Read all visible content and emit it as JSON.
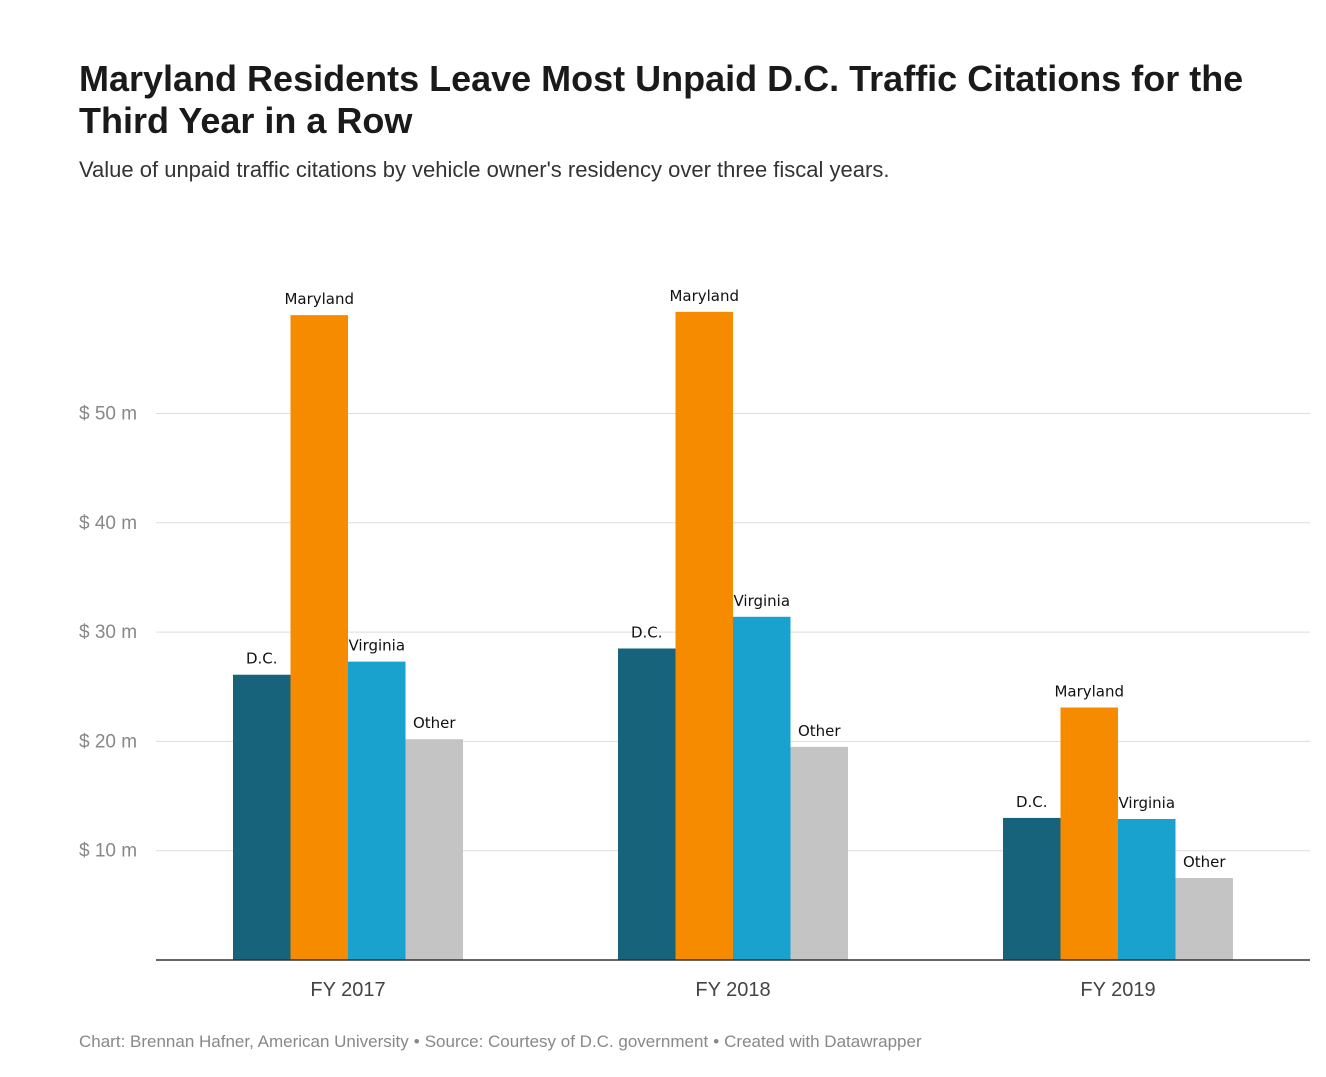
{
  "header": {
    "title": "Maryland Residents Leave Most Unpaid D.C. Traffic Citations for the Third Year in a Row",
    "subtitle": "Value of unpaid traffic citations by vehicle owner's residency over three fiscal years."
  },
  "footer": {
    "chart_credit": "Chart: Brennan Hafner, American University",
    "source": "Source: Courtesy of D.C. government",
    "tool": "Created with Datawrapper",
    "separator": "•"
  },
  "chart_data": {
    "type": "bar",
    "title": "Maryland Residents Leave Most Unpaid D.C. Traffic Citations for the Third Year in a Row",
    "subtitle": "Value of unpaid traffic citations by vehicle owner's residency over three fiscal years.",
    "categories": [
      "FY 2017",
      "FY 2018",
      "FY 2019"
    ],
    "series": [
      {
        "name": "D.C.",
        "color": "#17637c",
        "values": [
          26.1,
          28.5,
          13.0
        ]
      },
      {
        "name": "Maryland",
        "color": "#f78b00",
        "values": [
          59.0,
          59.3,
          23.1
        ]
      },
      {
        "name": "Virginia",
        "color": "#1aa2cf",
        "values": [
          27.3,
          31.4,
          12.9
        ]
      },
      {
        "name": "Other",
        "color": "#c4c4c4",
        "values": [
          20.2,
          19.5,
          7.5
        ]
      }
    ],
    "yticks": [
      10,
      20,
      30,
      40,
      50
    ],
    "ytick_labels": [
      "$ 10 m",
      "$ 20 m",
      "$ 30 m",
      "$ 40 m",
      "$ 50 m"
    ],
    "ylim": [
      0,
      60
    ],
    "grid": true,
    "legend": "none (direct labels above bars)",
    "xlabel": "",
    "ylabel": ""
  }
}
